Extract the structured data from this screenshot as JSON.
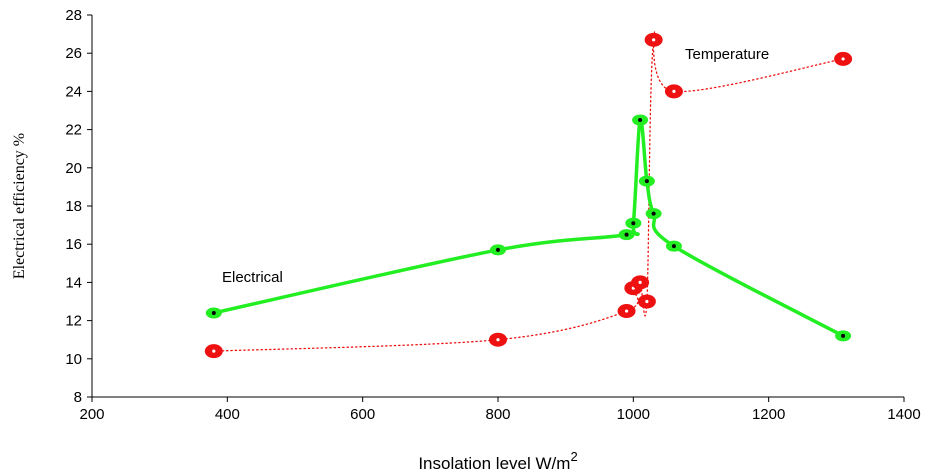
{
  "chart_data": {
    "type": "line",
    "title": "",
    "xlabel": "Insolation level W/m",
    "xlabel_superscript": "2",
    "ylabel": "Electrical efficiency %",
    "xlim": [
      200,
      1400
    ],
    "ylim": [
      8,
      28
    ],
    "xticks": [
      200,
      400,
      600,
      800,
      1000,
      1200,
      1400
    ],
    "yticks": [
      8,
      10,
      12,
      14,
      16,
      18,
      20,
      22,
      24,
      26,
      28
    ],
    "grid": false,
    "series": [
      {
        "name": "Electrical",
        "color": "#22ee22",
        "marker_dot_color": "#000000",
        "line_style": "solid",
        "x": [
          380,
          800,
          990,
          1000,
          1010,
          1020,
          1030,
          1060,
          1310
        ],
        "y": [
          12.4,
          15.7,
          16.5,
          17.1,
          22.5,
          19.3,
          17.6,
          15.9,
          11.2
        ]
      },
      {
        "name": "Temperature",
        "color": "#ee1111",
        "marker_dot_color": "#ffffff",
        "line_style": "dotted",
        "x": [
          380,
          800,
          990,
          1000,
          1010,
          1020,
          1030,
          1060,
          1310
        ],
        "y": [
          10.4,
          11.0,
          12.5,
          13.7,
          14.0,
          13.0,
          26.7,
          24.0,
          25.7
        ]
      }
    ]
  }
}
